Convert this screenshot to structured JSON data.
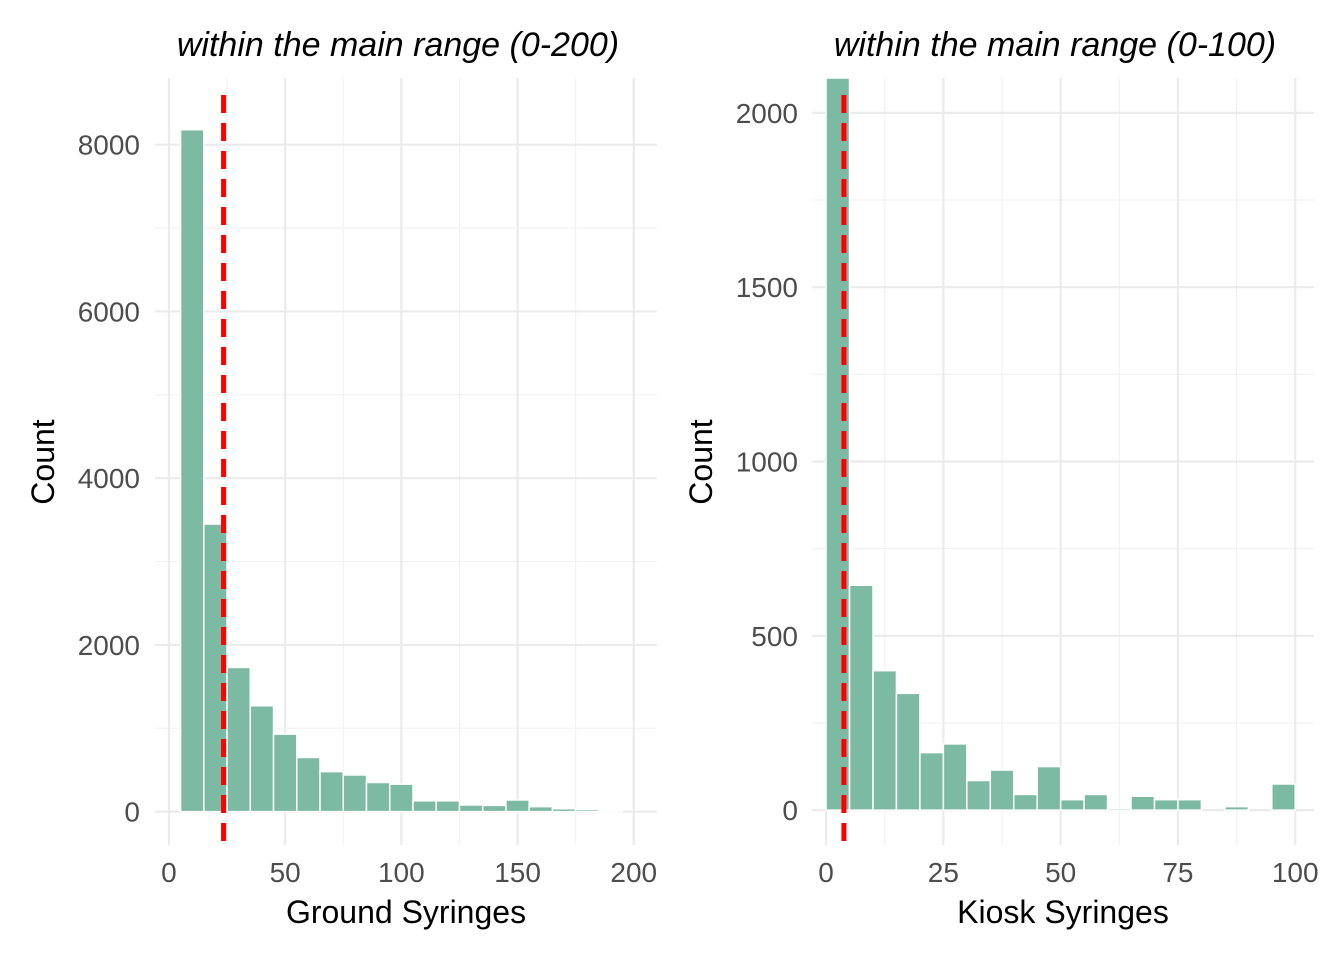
{
  "chart_data": [
    {
      "type": "bar",
      "title": "within the main range (0-200)",
      "xlabel": "Ground Syringes",
      "ylabel": "Count",
      "bin_width": 10,
      "bin_centers": [
        10,
        20,
        30,
        40,
        50,
        60,
        70,
        80,
        90,
        100,
        110,
        120,
        130,
        140,
        150,
        160,
        170,
        180,
        190
      ],
      "values": [
        8180,
        3450,
        1730,
        1270,
        930,
        650,
        480,
        440,
        350,
        330,
        130,
        130,
        80,
        75,
        140,
        60,
        35,
        25,
        10
      ],
      "xlim": [
        -6,
        210
      ],
      "ylim": [
        -400,
        8800
      ],
      "x_ticks": [
        0,
        50,
        100,
        150,
        200
      ],
      "x_tick_labels": [
        "0",
        "50",
        "100",
        "150",
        "200"
      ],
      "y_ticks": [
        0,
        2000,
        4000,
        6000,
        8000
      ],
      "y_tick_labels": [
        "0",
        "2000",
        "4000",
        "6000",
        "8000"
      ],
      "reference_line": {
        "x": 23.5,
        "style": "dashed",
        "color": "#ff0000"
      },
      "bar_color": "#7dbaa4",
      "grid": true,
      "legend": "none"
    },
    {
      "type": "bar",
      "title": "within the main range (0-100)",
      "xlabel": "Kiosk Syringes",
      "ylabel": "Count",
      "bin_width": 5,
      "bin_centers": [
        2.5,
        7.5,
        12.5,
        17.5,
        22.5,
        27.5,
        32.5,
        37.5,
        42.5,
        47.5,
        52.5,
        57.5,
        62.5,
        67.5,
        72.5,
        77.5,
        82.5,
        87.5,
        92.5,
        97.5
      ],
      "values": [
        2100,
        645,
        400,
        335,
        165,
        190,
        85,
        115,
        45,
        125,
        30,
        45,
        5,
        40,
        30,
        30,
        0,
        10,
        0,
        75
      ],
      "xlim": [
        -3,
        104
      ],
      "ylim": [
        -100,
        2100
      ],
      "x_ticks": [
        0,
        25,
        50,
        75,
        100
      ],
      "x_tick_labels": [
        "0",
        "25",
        "50",
        "75",
        "100"
      ],
      "y_ticks": [
        0,
        500,
        1000,
        1500,
        2000
      ],
      "y_tick_labels": [
        "0",
        "500",
        "1000",
        "1500",
        "2000"
      ],
      "reference_line": {
        "x": 3.8,
        "style": "dashed",
        "color": "#ff0000"
      },
      "bar_color": "#7dbaa4",
      "grid": true,
      "legend": "none"
    }
  ]
}
